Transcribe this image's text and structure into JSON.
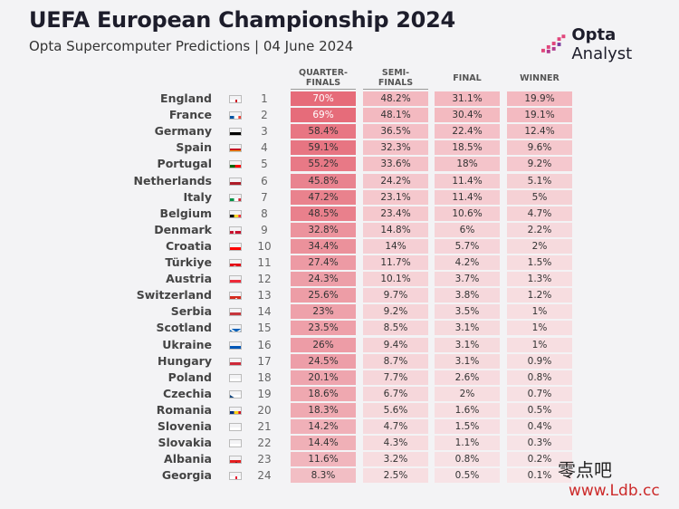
{
  "header": {
    "title": "UEFA European Championship 2024",
    "subtitle": "Opta Supercomputer Predictions | 04 June 2024",
    "brand_name": "Opta",
    "brand_suffix": "Analyst"
  },
  "columns": {
    "qf": [
      "QUARTER-",
      "FINALS"
    ],
    "sf": [
      "SEMI-",
      "FINALS"
    ],
    "final": "FINAL",
    "winner": "WINNER"
  },
  "watermark": {
    "cn": "零点吧",
    "url": "www.Ldb.cc"
  },
  "colors": {
    "qf_scale": [
      "#f8e9eb",
      "#e66b79"
    ],
    "other_scale": [
      "#f8e9eb",
      "#f3b9c0"
    ]
  },
  "chart_data": {
    "type": "table",
    "title": "UEFA European Championship 2024",
    "subtitle": "Opta Supercomputer Predictions | 04 June 2024",
    "columns": [
      "QUARTER-FINALS",
      "SEMI-FINALS",
      "FINAL",
      "WINNER"
    ],
    "rows": [
      {
        "team": "England",
        "rank": "1",
        "flag": "eng",
        "qf": "70%",
        "sf": "48.2%",
        "final": "31.1%",
        "winner": "19.9%"
      },
      {
        "team": "France",
        "rank": "2",
        "flag": "fra",
        "qf": "69%",
        "sf": "48.1%",
        "final": "30.4%",
        "winner": "19.1%"
      },
      {
        "team": "Germany",
        "rank": "3",
        "flag": "ger",
        "qf": "58.4%",
        "sf": "36.5%",
        "final": "22.4%",
        "winner": "12.4%"
      },
      {
        "team": "Spain",
        "rank": "4",
        "flag": "esp",
        "qf": "59.1%",
        "sf": "32.3%",
        "final": "18.5%",
        "winner": "9.6%"
      },
      {
        "team": "Portugal",
        "rank": "5",
        "flag": "por",
        "qf": "55.2%",
        "sf": "33.6%",
        "final": "18%",
        "winner": "9.2%"
      },
      {
        "team": "Netherlands",
        "rank": "6",
        "flag": "ned",
        "qf": "45.8%",
        "sf": "24.2%",
        "final": "11.4%",
        "winner": "5.1%"
      },
      {
        "team": "Italy",
        "rank": "7",
        "flag": "ita",
        "qf": "47.2%",
        "sf": "23.1%",
        "final": "11.4%",
        "winner": "5%"
      },
      {
        "team": "Belgium",
        "rank": "8",
        "flag": "bel",
        "qf": "48.5%",
        "sf": "23.4%",
        "final": "10.6%",
        "winner": "4.7%"
      },
      {
        "team": "Denmark",
        "rank": "9",
        "flag": "den",
        "qf": "32.8%",
        "sf": "14.8%",
        "final": "6%",
        "winner": "2.2%"
      },
      {
        "team": "Croatia",
        "rank": "10",
        "flag": "cro",
        "qf": "34.4%",
        "sf": "14%",
        "final": "5.7%",
        "winner": "2%"
      },
      {
        "team": "Türkiye",
        "rank": "11",
        "flag": "tur",
        "qf": "27.4%",
        "sf": "11.7%",
        "final": "4.2%",
        "winner": "1.5%"
      },
      {
        "team": "Austria",
        "rank": "12",
        "flag": "aut",
        "qf": "24.3%",
        "sf": "10.1%",
        "final": "3.7%",
        "winner": "1.3%"
      },
      {
        "team": "Switzerland",
        "rank": "13",
        "flag": "sui",
        "qf": "25.6%",
        "sf": "9.7%",
        "final": "3.8%",
        "winner": "1.2%"
      },
      {
        "team": "Serbia",
        "rank": "14",
        "flag": "srb",
        "qf": "23%",
        "sf": "9.2%",
        "final": "3.5%",
        "winner": "1%"
      },
      {
        "team": "Scotland",
        "rank": "15",
        "flag": "sco",
        "qf": "23.5%",
        "sf": "8.5%",
        "final": "3.1%",
        "winner": "1%"
      },
      {
        "team": "Ukraine",
        "rank": "16",
        "flag": "ukr",
        "qf": "26%",
        "sf": "9.4%",
        "final": "3.1%",
        "winner": "1%"
      },
      {
        "team": "Hungary",
        "rank": "17",
        "flag": "hun",
        "qf": "24.5%",
        "sf": "8.7%",
        "final": "3.1%",
        "winner": "0.9%"
      },
      {
        "team": "Poland",
        "rank": "18",
        "flag": "pol",
        "qf": "20.1%",
        "sf": "7.7%",
        "final": "2.6%",
        "winner": "0.8%"
      },
      {
        "team": "Czechia",
        "rank": "19",
        "flag": "cze",
        "qf": "18.6%",
        "sf": "6.7%",
        "final": "2%",
        "winner": "0.7%"
      },
      {
        "team": "Romania",
        "rank": "20",
        "flag": "rou",
        "qf": "18.3%",
        "sf": "5.6%",
        "final": "1.6%",
        "winner": "0.5%"
      },
      {
        "team": "Slovenia",
        "rank": "21",
        "flag": "svn",
        "qf": "14.2%",
        "sf": "4.7%",
        "final": "1.5%",
        "winner": "0.4%"
      },
      {
        "team": "Slovakia",
        "rank": "22",
        "flag": "svk",
        "qf": "14.4%",
        "sf": "4.3%",
        "final": "1.1%",
        "winner": "0.3%"
      },
      {
        "team": "Albania",
        "rank": "23",
        "flag": "alb",
        "qf": "11.6%",
        "sf": "3.2%",
        "final": "0.8%",
        "winner": "0.2%"
      },
      {
        "team": "Georgia",
        "rank": "24",
        "flag": "geo",
        "qf": "8.3%",
        "sf": "2.5%",
        "final": "0.5%",
        "winner": "0.1%"
      }
    ]
  }
}
